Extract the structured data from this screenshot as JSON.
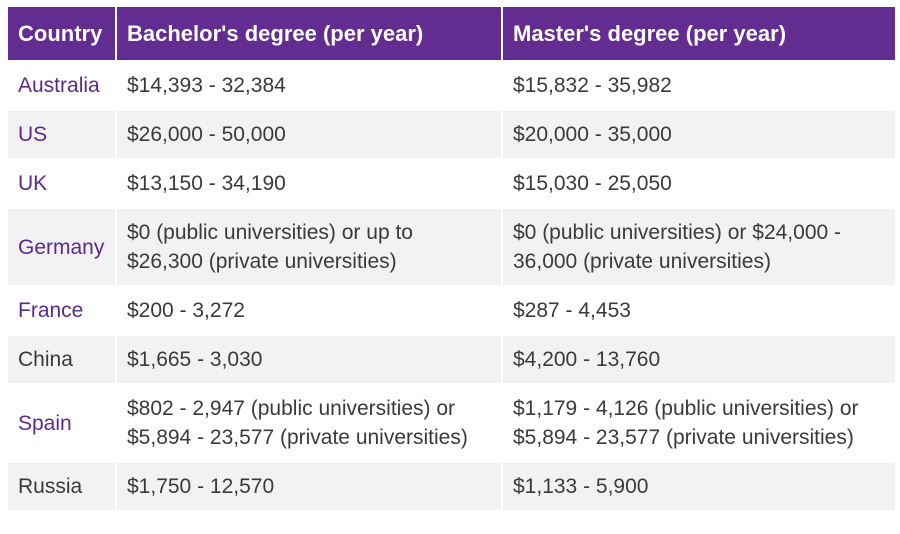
{
  "table": {
    "headers": [
      "Country",
      "Bachelor's degree (per year)",
      "Master's degree (per year)"
    ],
    "rows": [
      {
        "country": "Australia",
        "bachelor": "$14,393 - 32,384",
        "master": "$15,832 - 35,982"
      },
      {
        "country": "US",
        "bachelor": "$26,000 - 50,000",
        "master": "$20,000 - 35,000"
      },
      {
        "country": "UK",
        "bachelor": "$13,150 - 34,190",
        "master": "$15,030 - 25,050"
      },
      {
        "country": "Germany",
        "bachelor": "$0 (public universities) or up to $26,300 (private universities)",
        "master": "$0 (public universities) or $24,000 - 36,000 (private universities)"
      },
      {
        "country": "France",
        "bachelor": "$200 - 3,272",
        "master": "$287 - 4,453"
      },
      {
        "country": "China",
        "bachelor": "$1,665 - 3,030",
        "master": "$4,200 - 13,760"
      },
      {
        "country": "Spain",
        "bachelor": "$802 - 2,947 (public universities) or $5,894 - 23,577 (private universities)",
        "master": "$1,179 - 4,126 (public universities) or $5,894 - 23,577 (private universities)"
      },
      {
        "country": "Russia",
        "bachelor": "$1,750 - 12,570",
        "master": "$1,133 - 5,900"
      }
    ]
  },
  "colors": {
    "header_bg": "#632c91",
    "header_text": "#ffffff",
    "country_link": "#5b2a8c",
    "body_text": "#3a3a3a",
    "row_alt": "#f2f2f4"
  }
}
